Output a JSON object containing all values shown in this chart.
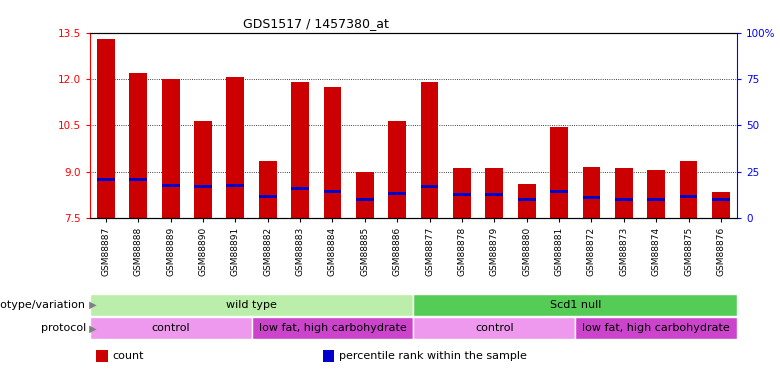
{
  "title": "GDS1517 / 1457380_at",
  "samples": [
    "GSM88887",
    "GSM88888",
    "GSM88889",
    "GSM88890",
    "GSM88891",
    "GSM88882",
    "GSM88883",
    "GSM88884",
    "GSM88885",
    "GSM88886",
    "GSM88877",
    "GSM88878",
    "GSM88879",
    "GSM88880",
    "GSM88881",
    "GSM88872",
    "GSM88873",
    "GSM88874",
    "GSM88875",
    "GSM88876"
  ],
  "count_values": [
    13.3,
    12.2,
    12.0,
    10.65,
    12.05,
    9.35,
    11.9,
    11.75,
    9.0,
    10.65,
    11.9,
    9.1,
    9.1,
    8.6,
    10.45,
    9.15,
    9.1,
    9.05,
    9.35,
    8.35
  ],
  "percentile_values": [
    8.75,
    8.75,
    8.55,
    8.5,
    8.55,
    8.2,
    8.45,
    8.35,
    8.1,
    8.3,
    8.5,
    8.25,
    8.25,
    8.1,
    8.35,
    8.15,
    8.1,
    8.1,
    8.2,
    8.1
  ],
  "ymin": 7.5,
  "ymax": 13.5,
  "yticks": [
    7.5,
    9.0,
    10.5,
    12.0,
    13.5
  ],
  "right_yticks": [
    0,
    25,
    50,
    75,
    100
  ],
  "bar_color": "#cc0000",
  "percentile_color": "#0000cc",
  "genotype_groups": [
    {
      "name": "wild type",
      "start": 0,
      "end": 10,
      "color": "#bbeeaa"
    },
    {
      "name": "Scd1 null",
      "start": 10,
      "end": 20,
      "color": "#55cc55"
    }
  ],
  "protocol_groups": [
    {
      "name": "control",
      "start": 0,
      "end": 5,
      "color": "#ee99ee"
    },
    {
      "name": "low fat, high carbohydrate",
      "start": 5,
      "end": 10,
      "color": "#cc44cc"
    },
    {
      "name": "control",
      "start": 10,
      "end": 15,
      "color": "#ee99ee"
    },
    {
      "name": "low fat, high carbohydrate",
      "start": 15,
      "end": 20,
      "color": "#cc44cc"
    }
  ],
  "genotype_label": "genotype/variation",
  "protocol_label": "protocol",
  "legend_items": [
    {
      "label": "count",
      "color": "#cc0000"
    },
    {
      "label": "percentile rank within the sample",
      "color": "#0000cc"
    }
  ]
}
